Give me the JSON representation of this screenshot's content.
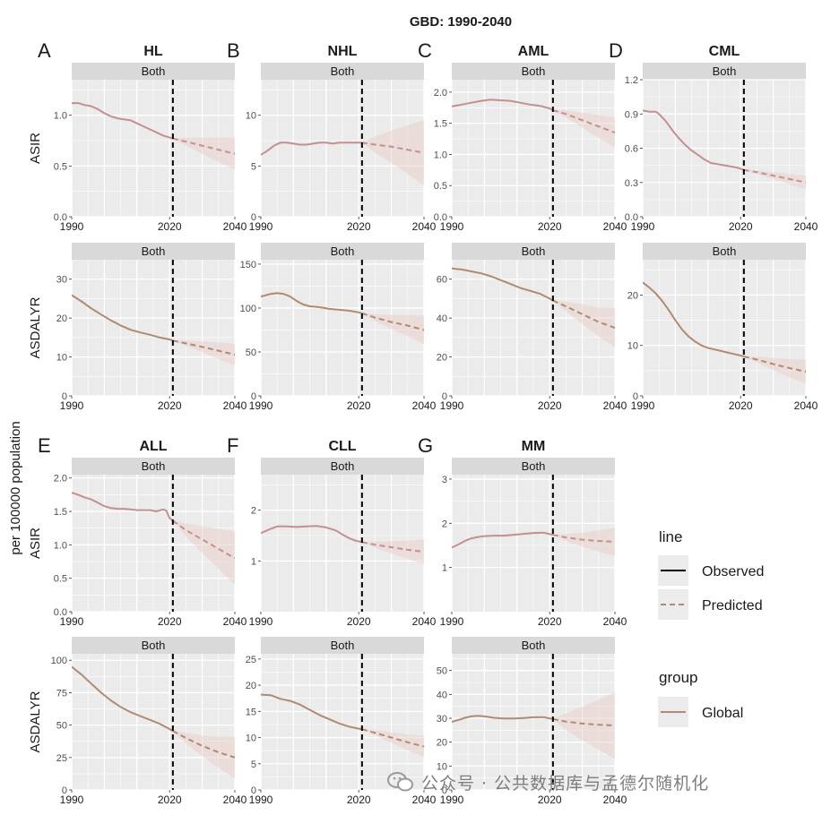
{
  "figure": {
    "title": "GBD: 1990-2040",
    "ylabel": "per 100000 population",
    "strip_label": "Both",
    "colors": {
      "panel_bg": "#ebebeb",
      "strip_bg": "#d9d9d9",
      "grid": "#ffffff",
      "asir_line": "#c48f8f",
      "asdalyr_line": "#b08a72",
      "band": "#e8c9c4",
      "vline": "#000000"
    }
  },
  "legend": {
    "line_title": "line",
    "line_items": [
      {
        "label": "Observed",
        "style": "solid",
        "color": "#000000"
      },
      {
        "label": "Predicted",
        "style": "dashed",
        "color": "#b08a72"
      }
    ],
    "group_title": "group",
    "group_items": [
      {
        "label": "Global",
        "color": "#b08a72"
      }
    ]
  },
  "watermark": {
    "text": "公众号 · 公共数据库与孟德尔随机化"
  },
  "chart_data": [
    {
      "type": "line",
      "panel_letter": "A",
      "disease": "HL",
      "measure": "ASIR",
      "ylim": [
        0,
        1.35
      ],
      "yticks": [
        0,
        0.5,
        1.0
      ],
      "ytick_labels": [
        "0.0",
        "0.5",
        "1.0"
      ],
      "xlim": [
        1990,
        2040
      ],
      "xticks": [
        1990,
        2020,
        2040
      ],
      "vline": 2021,
      "observed": {
        "x": [
          1990,
          1992,
          1994,
          1996,
          1998,
          2000,
          2002,
          2004,
          2006,
          2008,
          2010,
          2012,
          2014,
          2016,
          2018,
          2020,
          2021
        ],
        "y": [
          1.12,
          1.12,
          1.1,
          1.09,
          1.06,
          1.02,
          0.99,
          0.97,
          0.96,
          0.95,
          0.92,
          0.89,
          0.86,
          0.83,
          0.8,
          0.78,
          0.77
        ]
      },
      "predicted": {
        "x": [
          2021,
          2025,
          2030,
          2035,
          2040
        ],
        "y": [
          0.77,
          0.74,
          0.7,
          0.66,
          0.62
        ]
      },
      "band_spread": [
        0,
        0.04,
        0.08,
        0.12,
        0.16
      ]
    },
    {
      "type": "line",
      "panel_letter": "B",
      "disease": "NHL",
      "measure": "ASIR",
      "ylim": [
        0,
        13.5
      ],
      "yticks": [
        0,
        5,
        10
      ],
      "ytick_labels": [
        "0",
        "5",
        "10"
      ],
      "xlim": [
        1990,
        2040
      ],
      "xticks": [
        1990,
        2020,
        2040
      ],
      "vline": 2021,
      "observed": {
        "x": [
          1990,
          1992,
          1994,
          1996,
          1998,
          2000,
          2002,
          2004,
          2006,
          2008,
          2010,
          2012,
          2014,
          2016,
          2018,
          2020,
          2021
        ],
        "y": [
          6.1,
          6.5,
          7.0,
          7.3,
          7.3,
          7.2,
          7.1,
          7.1,
          7.2,
          7.3,
          7.3,
          7.2,
          7.3,
          7.3,
          7.3,
          7.3,
          7.3
        ]
      },
      "predicted": {
        "x": [
          2021,
          2025,
          2030,
          2035,
          2040
        ],
        "y": [
          7.3,
          7.1,
          6.9,
          6.6,
          6.3
        ]
      },
      "band_spread": [
        0,
        0.8,
        1.6,
        2.4,
        3.2
      ]
    },
    {
      "type": "line",
      "panel_letter": "C",
      "disease": "AML",
      "measure": "ASIR",
      "ylim": [
        0,
        2.2
      ],
      "yticks": [
        0,
        0.5,
        1.0,
        1.5,
        2.0
      ],
      "ytick_labels": [
        "0.0",
        "0.5",
        "1.0",
        "1.5",
        "2.0"
      ],
      "xlim": [
        1990,
        2040
      ],
      "xticks": [
        1990,
        2020,
        2040
      ],
      "vline": 2021,
      "observed": {
        "x": [
          1990,
          1993,
          1996,
          1999,
          2002,
          2005,
          2008,
          2011,
          2014,
          2017,
          2020,
          2021
        ],
        "y": [
          1.77,
          1.8,
          1.83,
          1.86,
          1.88,
          1.87,
          1.86,
          1.83,
          1.8,
          1.78,
          1.74,
          1.71
        ]
      },
      "predicted": {
        "x": [
          2021,
          2025,
          2030,
          2035,
          2040
        ],
        "y": [
          1.71,
          1.65,
          1.55,
          1.45,
          1.35
        ]
      },
      "band_spread": [
        0,
        0.06,
        0.12,
        0.18,
        0.24
      ]
    },
    {
      "type": "line",
      "panel_letter": "D",
      "disease": "CML",
      "measure": "ASIR",
      "ylim": [
        0,
        1.2
      ],
      "yticks": [
        0,
        0.3,
        0.6,
        0.9,
        1.2
      ],
      "ytick_labels": [
        "0.0",
        "0.3",
        "0.6",
        "0.9",
        "1.2"
      ],
      "xlim": [
        1990,
        2040
      ],
      "xticks": [
        1990,
        2020,
        2040
      ],
      "vline": 2021,
      "observed": {
        "x": [
          1990,
          1992,
          1994,
          1995,
          1997,
          1999,
          2001,
          2003,
          2005,
          2007,
          2009,
          2011,
          2013,
          2015,
          2017,
          2019,
          2021
        ],
        "y": [
          0.93,
          0.92,
          0.92,
          0.9,
          0.84,
          0.76,
          0.69,
          0.63,
          0.58,
          0.54,
          0.5,
          0.47,
          0.46,
          0.45,
          0.44,
          0.43,
          0.41
        ]
      },
      "predicted": {
        "x": [
          2021,
          2025,
          2030,
          2035,
          2040
        ],
        "y": [
          0.41,
          0.39,
          0.36,
          0.33,
          0.3
        ]
      },
      "band_spread": [
        0,
        0.015,
        0.03,
        0.045,
        0.06
      ]
    },
    {
      "type": "line",
      "panel_letter": "",
      "disease": "HL",
      "measure": "ASDALYR",
      "ylim": [
        0,
        35
      ],
      "yticks": [
        0,
        10,
        20,
        30
      ],
      "ytick_labels": [
        "0",
        "10",
        "20",
        "30"
      ],
      "xlim": [
        1990,
        2040
      ],
      "xticks": [
        1990,
        2020,
        2040
      ],
      "vline": 2021,
      "observed": {
        "x": [
          1990,
          1993,
          1996,
          1999,
          2002,
          2005,
          2008,
          2011,
          2014,
          2017,
          2020,
          2021
        ],
        "y": [
          25.9,
          24.3,
          22.5,
          20.9,
          19.4,
          18.1,
          17.0,
          16.3,
          15.7,
          15.0,
          14.5,
          14.2
        ]
      },
      "predicted": {
        "x": [
          2021,
          2025,
          2030,
          2035,
          2040
        ],
        "y": [
          14.2,
          13.5,
          12.6,
          11.6,
          10.6
        ]
      },
      "band_spread": [
        0,
        0.7,
        1.4,
        2.1,
        2.8
      ]
    },
    {
      "type": "line",
      "panel_letter": "",
      "disease": "NHL",
      "measure": "ASDALYR",
      "ylim": [
        0,
        155
      ],
      "yticks": [
        0,
        50,
        100,
        150
      ],
      "ytick_labels": [
        "0",
        "50",
        "100",
        "150"
      ],
      "xlim": [
        1990,
        2040
      ],
      "xticks": [
        1990,
        2020,
        2040
      ],
      "vline": 2021,
      "observed": {
        "x": [
          1990,
          1993,
          1995,
          1997,
          1999,
          2001,
          2003,
          2005,
          2008,
          2011,
          2014,
          2017,
          2020,
          2021
        ],
        "y": [
          113,
          116,
          117,
          116,
          113,
          108,
          104,
          102,
          101,
          99,
          98,
          97,
          95,
          94
        ]
      },
      "predicted": {
        "x": [
          2021,
          2025,
          2030,
          2035,
          2040
        ],
        "y": [
          94,
          89,
          84,
          80,
          75
        ]
      },
      "band_spread": [
        0,
        4,
        8,
        12,
        16
      ]
    },
    {
      "type": "line",
      "panel_letter": "",
      "disease": "AML",
      "measure": "ASDALYR",
      "ylim": [
        0,
        70
      ],
      "yticks": [
        0,
        20,
        40,
        60
      ],
      "ytick_labels": [
        "0",
        "20",
        "40",
        "60"
      ],
      "xlim": [
        1990,
        2040
      ],
      "xticks": [
        1990,
        2020,
        2040
      ],
      "vline": 2021,
      "observed": {
        "x": [
          1990,
          1993,
          1996,
          1999,
          2002,
          2005,
          2008,
          2011,
          2014,
          2017,
          2020,
          2021
        ],
        "y": [
          65.5,
          65.0,
          64.0,
          63.0,
          61.5,
          59.5,
          57.5,
          55.5,
          54.0,
          52.5,
          50.0,
          49.0
        ]
      },
      "predicted": {
        "x": [
          2021,
          2025,
          2030,
          2035,
          2040
        ],
        "y": [
          49,
          46,
          42,
          38,
          35
        ]
      },
      "band_spread": [
        0,
        2.5,
        5,
        7.5,
        10
      ]
    },
    {
      "type": "line",
      "panel_letter": "",
      "disease": "CML",
      "measure": "ASDALYR",
      "ylim": [
        0,
        27
      ],
      "yticks": [
        0,
        10,
        20
      ],
      "ytick_labels": [
        "0",
        "10",
        "20"
      ],
      "xlim": [
        1990,
        2040
      ],
      "xticks": [
        1990,
        2020,
        2040
      ],
      "vline": 2021,
      "observed": {
        "x": [
          1990,
          1992,
          1994,
          1996,
          1998,
          2000,
          2002,
          2004,
          2006,
          2008,
          2010,
          2012,
          2014,
          2016,
          2018,
          2020,
          2021
        ],
        "y": [
          22.5,
          21.5,
          20.3,
          18.8,
          17.0,
          15.0,
          13.2,
          11.8,
          10.8,
          10.0,
          9.5,
          9.2,
          8.9,
          8.6,
          8.3,
          8.0,
          7.8
        ]
      },
      "predicted": {
        "x": [
          2021,
          2025,
          2030,
          2035,
          2040
        ],
        "y": [
          7.8,
          7.2,
          6.3,
          5.5,
          4.8
        ]
      },
      "band_spread": [
        0,
        0.6,
        1.2,
        1.8,
        2.4
      ]
    },
    {
      "type": "line",
      "panel_letter": "E",
      "disease": "ALL",
      "measure": "ASIR",
      "ylim": [
        0,
        2.05
      ],
      "yticks": [
        0,
        0.5,
        1.0,
        1.5,
        2.0
      ],
      "ytick_labels": [
        "0.0",
        "0.5",
        "1.0",
        "1.5",
        "2.0"
      ],
      "xlim": [
        1990,
        2040
      ],
      "xticks": [
        1990,
        2020,
        2040
      ],
      "vline": 2021,
      "observed": {
        "x": [
          1990,
          1992,
          1994,
          1996,
          1998,
          2000,
          2002,
          2004,
          2006,
          2008,
          2010,
          2012,
          2014,
          2016,
          2018,
          2019,
          2020,
          2021
        ],
        "y": [
          1.78,
          1.75,
          1.71,
          1.68,
          1.63,
          1.58,
          1.55,
          1.54,
          1.54,
          1.53,
          1.52,
          1.52,
          1.52,
          1.5,
          1.53,
          1.51,
          1.4,
          1.36
        ]
      },
      "predicted": {
        "x": [
          2021,
          2025,
          2030,
          2035,
          2040
        ],
        "y": [
          1.36,
          1.22,
          1.08,
          0.94,
          0.8
        ]
      },
      "band_spread": [
        0,
        0.1,
        0.2,
        0.3,
        0.4
      ]
    },
    {
      "type": "line",
      "panel_letter": "F",
      "disease": "CLL",
      "measure": "ASIR",
      "ylim": [
        0,
        2.7
      ],
      "yticks": [
        1,
        2
      ],
      "ytick_labels": [
        "1",
        "2"
      ],
      "xlim": [
        1990,
        2040
      ],
      "xticks": [
        1990,
        2020,
        2040
      ],
      "vline": 2021,
      "observed": {
        "x": [
          1990,
          1993,
          1995,
          1998,
          2001,
          2004,
          2007,
          2010,
          2013,
          2015,
          2017,
          2019,
          2021
        ],
        "y": [
          1.55,
          1.63,
          1.68,
          1.68,
          1.67,
          1.68,
          1.69,
          1.66,
          1.6,
          1.52,
          1.45,
          1.4,
          1.37
        ]
      },
      "predicted": {
        "x": [
          2021,
          2025,
          2030,
          2035,
          2040
        ],
        "y": [
          1.37,
          1.32,
          1.27,
          1.22,
          1.18
        ]
      },
      "band_spread": [
        0,
        0.06,
        0.12,
        0.18,
        0.24
      ]
    },
    {
      "type": "line",
      "panel_letter": "G",
      "disease": "MM",
      "measure": "ASIR",
      "ylim": [
        0,
        3.1
      ],
      "yticks": [
        1,
        2,
        3
      ],
      "ytick_labels": [
        "1",
        "2",
        "3"
      ],
      "xlim": [
        1990,
        2040
      ],
      "xticks": [
        1990,
        2020,
        2040
      ],
      "vline": 2021,
      "observed": {
        "x": [
          1990,
          1992,
          1994,
          1996,
          1998,
          2000,
          2003,
          2006,
          2009,
          2012,
          2015,
          2018,
          2021
        ],
        "y": [
          1.45,
          1.52,
          1.6,
          1.66,
          1.69,
          1.71,
          1.72,
          1.72,
          1.74,
          1.76,
          1.78,
          1.79,
          1.74
        ]
      },
      "predicted": {
        "x": [
          2021,
          2025,
          2030,
          2035,
          2040
        ],
        "y": [
          1.74,
          1.68,
          1.63,
          1.6,
          1.58
        ]
      },
      "band_spread": [
        0,
        0.08,
        0.16,
        0.24,
        0.32
      ]
    },
    {
      "type": "line",
      "panel_letter": "",
      "disease": "ALL",
      "measure": "ASDALYR",
      "ylim": [
        0,
        105
      ],
      "yticks": [
        0,
        25,
        50,
        75,
        100
      ],
      "ytick_labels": [
        "0",
        "25",
        "50",
        "75",
        "100"
      ],
      "xlim": [
        1990,
        2040
      ],
      "xticks": [
        1990,
        2020,
        2040
      ],
      "vline": 2021,
      "observed": {
        "x": [
          1990,
          1993,
          1996,
          1999,
          2002,
          2005,
          2008,
          2011,
          2014,
          2017,
          2020,
          2021
        ],
        "y": [
          95,
          89,
          82,
          75,
          69,
          64,
          60,
          57,
          54,
          51,
          47,
          45.5
        ]
      },
      "predicted": {
        "x": [
          2021,
          2025,
          2030,
          2035,
          2040
        ],
        "y": [
          45.5,
          40,
          34,
          29,
          25
        ]
      },
      "band_spread": [
        0,
        4,
        8,
        12,
        16
      ]
    },
    {
      "type": "line",
      "panel_letter": "",
      "disease": "CLL",
      "measure": "ASDALYR",
      "ylim": [
        0,
        26
      ],
      "yticks": [
        0,
        5,
        10,
        15,
        20,
        25
      ],
      "ytick_labels": [
        "0",
        "5",
        "10",
        "15",
        "20",
        "25"
      ],
      "xlim": [
        1990,
        2040
      ],
      "xticks": [
        1990,
        2020,
        2040
      ],
      "vline": 2021,
      "observed": {
        "x": [
          1990,
          1993,
          1996,
          1999,
          2002,
          2005,
          2008,
          2011,
          2014,
          2017,
          2020,
          2021
        ],
        "y": [
          18.2,
          18.1,
          17.4,
          17.0,
          16.3,
          15.3,
          14.3,
          13.5,
          12.7,
          12.1,
          11.7,
          11.6
        ]
      },
      "predicted": {
        "x": [
          2021,
          2025,
          2030,
          2035,
          2040
        ],
        "y": [
          11.6,
          10.9,
          10.0,
          9.1,
          8.3
        ]
      },
      "band_spread": [
        0,
        0.5,
        1,
        1.5,
        2
      ]
    },
    {
      "type": "line",
      "panel_letter": "",
      "disease": "MM",
      "measure": "ASDALYR",
      "ylim": [
        0,
        57
      ],
      "yticks": [
        0,
        10,
        20,
        30,
        40,
        50
      ],
      "ytick_labels": [
        "0",
        "10",
        "20",
        "30",
        "40",
        "50"
      ],
      "xlim": [
        1990,
        2040
      ],
      "xticks": [
        1990,
        2020,
        2040
      ],
      "vline": 2021,
      "observed": {
        "x": [
          1990,
          1992,
          1994,
          1996,
          1998,
          2000,
          2003,
          2006,
          2009,
          2012,
          2015,
          2018,
          2021
        ],
        "y": [
          28.5,
          29.3,
          30.2,
          30.8,
          31.0,
          30.8,
          30.2,
          29.9,
          29.9,
          30.1,
          30.4,
          30.5,
          29.7
        ]
      },
      "predicted": {
        "x": [
          2021,
          2025,
          2030,
          2035,
          2040
        ],
        "y": [
          29.7,
          28.6,
          27.8,
          27.3,
          27.0
        ]
      },
      "band_spread": [
        0,
        3.5,
        7,
        10.5,
        14
      ]
    }
  ]
}
